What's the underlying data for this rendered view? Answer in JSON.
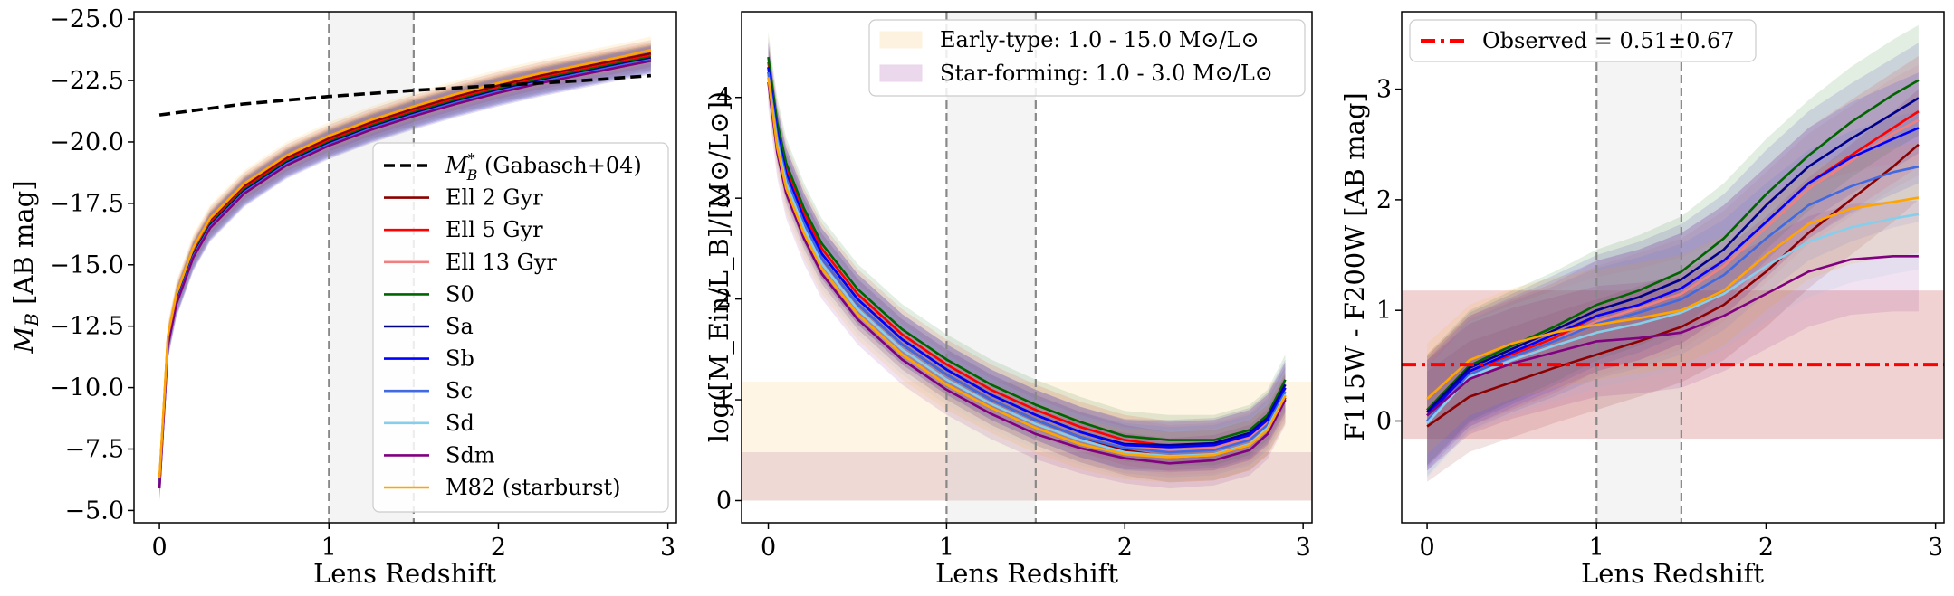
{
  "figure": {
    "panels": [
      "absolute-magnitude",
      "mass-to-light",
      "color"
    ]
  },
  "legend_left": {
    "items": [
      {
        "label": "(Gabasch+04)",
        "symbol": "M",
        "sub": "B",
        "sup": "*",
        "color": "#000000",
        "style": "dashed"
      },
      {
        "label": "Ell 2 Gyr",
        "color": "#8b0000",
        "style": "solid"
      },
      {
        "label": "Ell 5 Gyr",
        "color": "#ff0000",
        "style": "solid"
      },
      {
        "label": "Ell 13 Gyr",
        "color": "#f08080",
        "style": "solid"
      },
      {
        "label": "S0",
        "color": "#006400",
        "style": "solid"
      },
      {
        "label": "Sa",
        "color": "#00008b",
        "style": "solid"
      },
      {
        "label": "Sb",
        "color": "#0000ff",
        "style": "solid"
      },
      {
        "label": "Sc",
        "color": "#4169e1",
        "style": "solid"
      },
      {
        "label": "Sd",
        "color": "#87ceeb",
        "style": "solid"
      },
      {
        "label": "Sdm",
        "color": "#800080",
        "style": "solid"
      },
      {
        "label": "M82 (starburst)",
        "color": "#ffa500",
        "style": "solid"
      }
    ]
  },
  "legend_mid": {
    "items": [
      {
        "label": "Early-type: 1.0 - 15.0 M⊙/L⊙",
        "color": "#fdf1dc"
      },
      {
        "label": "Star-forming: 1.0 - 3.0 M⊙/L⊙",
        "color": "#ead4ea"
      }
    ]
  },
  "legend_right": {
    "items": [
      {
        "label": "Observed = 0.51±0.67",
        "color": "#ff0000",
        "style": "dashdot"
      }
    ]
  },
  "chart_data": [
    {
      "type": "line",
      "title": "",
      "xlabel": "Lens Redshift",
      "ylabel": {
        "symbol": "M",
        "sub": "B",
        "rest": "[AB mag]"
      },
      "xlim": [
        -0.15,
        3.05
      ],
      "ylim": [
        -4.5,
        -25.3
      ],
      "y_inverted": true,
      "xticks": [
        0,
        1,
        2,
        3
      ],
      "yticks": [
        -25.0,
        -22.5,
        -20.0,
        -17.5,
        -15.0,
        -12.5,
        -10.0,
        -7.5,
        -5.0
      ],
      "ytick_labels": [
        "−25.0",
        "−22.5",
        "−20.0",
        "−17.5",
        "−15.0",
        "−12.5",
        "−10.0",
        "−7.5",
        "−5.0"
      ],
      "shaded_x_range": [
        1.0,
        1.5
      ],
      "vlines": [
        1.0,
        1.5
      ],
      "x": [
        0,
        0.05,
        0.1,
        0.2,
        0.3,
        0.5,
        0.75,
        1.0,
        1.25,
        1.5,
        1.75,
        2.0,
        2.25,
        2.5,
        2.75,
        2.9
      ],
      "reference": {
        "name": "M_B* (Gabasch+04)",
        "x": [
          0,
          0.5,
          1.0,
          1.5,
          2.0,
          2.5,
          2.9
        ],
        "values": [
          -21.1,
          -21.55,
          -21.85,
          -22.1,
          -22.3,
          -22.5,
          -22.7
        ]
      },
      "series": [
        {
          "name": "Ell 2 Gyr",
          "color": "#8b0000",
          "values": [
            -6.2,
            -12.0,
            -13.7,
            -15.6,
            -16.8,
            -18.2,
            -19.35,
            -20.15,
            -20.8,
            -21.35,
            -21.85,
            -22.3,
            -22.7,
            -23.05,
            -23.4,
            -23.6
          ]
        },
        {
          "name": "Ell 5 Gyr",
          "color": "#ff0000",
          "values": [
            -6.1,
            -11.9,
            -13.6,
            -15.5,
            -16.7,
            -18.1,
            -19.25,
            -20.05,
            -20.7,
            -21.25,
            -21.75,
            -22.2,
            -22.6,
            -22.95,
            -23.3,
            -23.5
          ]
        },
        {
          "name": "Ell 13 Gyr",
          "color": "#f08080",
          "values": [
            -6.0,
            -11.8,
            -13.5,
            -15.4,
            -16.6,
            -18.0,
            -19.15,
            -19.95,
            -20.6,
            -21.15,
            -21.65,
            -22.1,
            -22.5,
            -22.85,
            -23.2,
            -23.4
          ]
        },
        {
          "name": "S0",
          "color": "#006400",
          "values": [
            -6.1,
            -11.85,
            -13.55,
            -15.45,
            -16.65,
            -18.05,
            -19.2,
            -20.0,
            -20.65,
            -21.2,
            -21.7,
            -22.15,
            -22.55,
            -22.9,
            -23.25,
            -23.45
          ]
        },
        {
          "name": "Sa",
          "color": "#00008b",
          "values": [
            -6.0,
            -11.8,
            -13.5,
            -15.4,
            -16.6,
            -18.0,
            -19.15,
            -19.95,
            -20.6,
            -21.15,
            -21.65,
            -22.1,
            -22.5,
            -22.85,
            -23.2,
            -23.4
          ]
        },
        {
          "name": "Sb",
          "color": "#0000ff",
          "values": [
            -6.0,
            -11.75,
            -13.45,
            -15.35,
            -16.55,
            -17.95,
            -19.1,
            -19.9,
            -20.55,
            -21.1,
            -21.6,
            -22.05,
            -22.45,
            -22.8,
            -23.15,
            -23.35
          ]
        },
        {
          "name": "Sc",
          "color": "#4169e1",
          "values": [
            -6.0,
            -11.75,
            -13.45,
            -15.35,
            -16.55,
            -17.95,
            -19.1,
            -19.9,
            -20.55,
            -21.1,
            -21.6,
            -22.05,
            -22.45,
            -22.8,
            -23.15,
            -23.35
          ]
        },
        {
          "name": "Sd",
          "color": "#87ceeb",
          "values": [
            -5.9,
            -11.7,
            -13.4,
            -15.3,
            -16.5,
            -17.9,
            -19.05,
            -19.85,
            -20.5,
            -21.05,
            -21.55,
            -22.0,
            -22.4,
            -22.75,
            -23.1,
            -23.3
          ]
        },
        {
          "name": "Sdm",
          "color": "#800080",
          "values": [
            -5.9,
            -11.7,
            -13.4,
            -15.3,
            -16.5,
            -17.9,
            -19.05,
            -19.85,
            -20.5,
            -21.05,
            -21.55,
            -22.0,
            -22.4,
            -22.75,
            -23.1,
            -23.3
          ]
        },
        {
          "name": "M82 (starburst)",
          "color": "#ffa500",
          "values": [
            -6.3,
            -12.1,
            -13.8,
            -15.7,
            -16.9,
            -18.3,
            -19.45,
            -20.25,
            -20.9,
            -21.45,
            -21.95,
            -22.4,
            -22.8,
            -23.15,
            -23.5,
            -23.75
          ]
        }
      ],
      "band_halfwidth": 0.55,
      "legend_position": "lower right"
    },
    {
      "type": "line",
      "title": "",
      "xlabel": "Lens Redshift",
      "ylabel": "log([M_Ein/L_B]/[M⊙/L⊙])",
      "xlim": [
        -0.15,
        3.05
      ],
      "ylim": [
        -0.22,
        4.85
      ],
      "xticks": [
        0,
        1,
        2,
        3
      ],
      "yticks": [
        0,
        1,
        2,
        3,
        4
      ],
      "shaded_x_range": [
        1.0,
        1.5
      ],
      "vlines": [
        1.0,
        1.5
      ],
      "hbands": [
        {
          "name": "Early-type: 1.0 - 15.0 M⊙/L⊙",
          "y": [
            0.0,
            1.18
          ],
          "color": "#fdf1dc"
        },
        {
          "name": "Star-forming: 1.0 - 3.0 M⊙/L⊙",
          "y": [
            0.0,
            0.48
          ],
          "color": "#e8cfcf"
        }
      ],
      "x": [
        0,
        0.05,
        0.1,
        0.2,
        0.3,
        0.5,
        0.75,
        1.0,
        1.25,
        1.5,
        1.75,
        2.0,
        2.25,
        2.5,
        2.7,
        2.8,
        2.9
      ],
      "series": [
        {
          "name": "Ell 2 Gyr",
          "color": "#8b0000",
          "values": [
            4.25,
            3.6,
            3.2,
            2.75,
            2.4,
            1.95,
            1.55,
            1.25,
            1.0,
            0.8,
            0.63,
            0.5,
            0.43,
            0.45,
            0.55,
            0.7,
            1.02
          ]
        },
        {
          "name": "Ell 5 Gyr",
          "color": "#ff0000",
          "values": [
            4.35,
            3.7,
            3.3,
            2.85,
            2.5,
            2.05,
            1.65,
            1.35,
            1.1,
            0.9,
            0.73,
            0.6,
            0.54,
            0.55,
            0.65,
            0.8,
            1.12
          ]
        },
        {
          "name": "Ell 13 Gyr",
          "color": "#f08080",
          "values": [
            4.3,
            3.65,
            3.25,
            2.8,
            2.45,
            2.0,
            1.6,
            1.3,
            1.05,
            0.85,
            0.68,
            0.56,
            0.5,
            0.52,
            0.62,
            0.77,
            1.08
          ]
        },
        {
          "name": "S0",
          "color": "#006400",
          "values": [
            4.4,
            3.75,
            3.35,
            2.9,
            2.55,
            2.1,
            1.7,
            1.4,
            1.15,
            0.95,
            0.78,
            0.64,
            0.6,
            0.6,
            0.7,
            0.85,
            1.2
          ]
        },
        {
          "name": "Sa",
          "color": "#00008b",
          "values": [
            4.3,
            3.65,
            3.25,
            2.8,
            2.45,
            2.0,
            1.6,
            1.3,
            1.05,
            0.85,
            0.68,
            0.56,
            0.55,
            0.57,
            0.67,
            0.82,
            1.15
          ]
        },
        {
          "name": "Sb",
          "color": "#0000ff",
          "values": [
            4.3,
            3.65,
            3.25,
            2.8,
            2.45,
            2.0,
            1.6,
            1.3,
            1.05,
            0.85,
            0.68,
            0.55,
            0.53,
            0.55,
            0.65,
            0.8,
            1.12
          ]
        },
        {
          "name": "Sc",
          "color": "#4169e1",
          "values": [
            4.25,
            3.6,
            3.2,
            2.75,
            2.4,
            1.95,
            1.55,
            1.25,
            1.0,
            0.8,
            0.63,
            0.52,
            0.48,
            0.5,
            0.6,
            0.75,
            1.08
          ]
        },
        {
          "name": "Sd",
          "color": "#87ceeb",
          "values": [
            4.2,
            3.55,
            3.15,
            2.7,
            2.35,
            1.9,
            1.5,
            1.2,
            0.96,
            0.76,
            0.6,
            0.48,
            0.44,
            0.46,
            0.56,
            0.72,
            1.05
          ]
        },
        {
          "name": "Sdm",
          "color": "#800080",
          "values": [
            4.15,
            3.45,
            3.05,
            2.6,
            2.25,
            1.8,
            1.4,
            1.1,
            0.86,
            0.66,
            0.52,
            0.42,
            0.37,
            0.4,
            0.5,
            0.66,
            1.0
          ]
        },
        {
          "name": "M82 (starburst)",
          "color": "#ffa500",
          "values": [
            4.2,
            3.5,
            3.1,
            2.65,
            2.3,
            1.85,
            1.45,
            1.15,
            0.92,
            0.72,
            0.56,
            0.46,
            0.43,
            0.45,
            0.55,
            0.7,
            1.04
          ]
        }
      ],
      "band_halfwidth": 0.25,
      "legend_position": "upper right"
    },
    {
      "type": "line",
      "title": "",
      "xlabel": "Lens Redshift",
      "ylabel": "F115W - F200W [AB mag]",
      "xlim": [
        -0.15,
        3.05
      ],
      "ylim": [
        -0.92,
        3.7
      ],
      "xticks": [
        0,
        1,
        2,
        3
      ],
      "yticks": [
        0,
        1,
        2,
        3
      ],
      "shaded_x_range": [
        1.0,
        1.5
      ],
      "vlines": [
        1.0,
        1.5
      ],
      "observed": {
        "value": 0.51,
        "error": 0.67,
        "band": [
          -0.16,
          1.18
        ]
      },
      "x": [
        0,
        0.25,
        0.5,
        0.75,
        1.0,
        1.25,
        1.5,
        1.75,
        2.0,
        2.25,
        2.5,
        2.75,
        2.9
      ],
      "series": [
        {
          "name": "Ell 2 Gyr",
          "color": "#8b0000",
          "values": [
            -0.05,
            0.22,
            0.35,
            0.48,
            0.6,
            0.72,
            0.85,
            1.05,
            1.35,
            1.7,
            2.0,
            2.3,
            2.5
          ]
        },
        {
          "name": "Ell 5 Gyr",
          "color": "#ff0000",
          "values": [
            0.1,
            0.45,
            0.6,
            0.75,
            0.95,
            1.05,
            1.2,
            1.45,
            1.8,
            2.15,
            2.4,
            2.65,
            2.8
          ]
        },
        {
          "name": "Ell 13 Gyr",
          "color": "#f08080",
          "values": [
            0.05,
            0.4,
            0.58,
            0.72,
            0.9,
            1.02,
            1.15,
            1.4,
            1.75,
            2.1,
            2.35,
            2.6,
            2.72
          ]
        },
        {
          "name": "S0",
          "color": "#006400",
          "values": [
            0.1,
            0.5,
            0.68,
            0.85,
            1.05,
            1.18,
            1.35,
            1.65,
            2.05,
            2.4,
            2.7,
            2.95,
            3.08
          ]
        },
        {
          "name": "Sa",
          "color": "#00008b",
          "values": [
            0.08,
            0.48,
            0.65,
            0.82,
            1.0,
            1.12,
            1.28,
            1.55,
            1.95,
            2.3,
            2.55,
            2.78,
            2.92
          ]
        },
        {
          "name": "Sb",
          "color": "#0000ff",
          "values": [
            0.05,
            0.45,
            0.62,
            0.78,
            0.95,
            1.05,
            1.2,
            1.45,
            1.8,
            2.15,
            2.38,
            2.55,
            2.65
          ]
        },
        {
          "name": "Sc",
          "color": "#4169e1",
          "values": [
            0.0,
            0.42,
            0.58,
            0.72,
            0.88,
            0.98,
            1.1,
            1.32,
            1.65,
            1.95,
            2.12,
            2.25,
            2.3
          ]
        },
        {
          "name": "Sd",
          "color": "#87ceeb",
          "values": [
            -0.02,
            0.4,
            0.55,
            0.68,
            0.8,
            0.88,
            0.98,
            1.15,
            1.4,
            1.62,
            1.75,
            1.83,
            1.87
          ]
        },
        {
          "name": "Sdm",
          "color": "#800080",
          "values": [
            0.05,
            0.38,
            0.52,
            0.62,
            0.72,
            0.75,
            0.8,
            0.95,
            1.15,
            1.35,
            1.46,
            1.49,
            1.49
          ]
        },
        {
          "name": "M82 (starburst)",
          "color": "#ffa500",
          "values": [
            0.2,
            0.55,
            0.7,
            0.8,
            0.87,
            0.93,
            1.0,
            1.18,
            1.5,
            1.78,
            1.92,
            1.98,
            2.02
          ]
        }
      ],
      "band_halfwidth": 0.5,
      "legend_position": "upper left"
    }
  ]
}
